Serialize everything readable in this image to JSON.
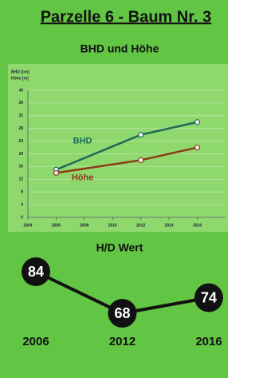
{
  "header": {
    "title": "Parzelle 6 - Baum Nr. 3"
  },
  "chart_data": [
    {
      "type": "line",
      "title": "BHD und Höhe",
      "ylabel": "BHD [cm]",
      "ylabel2": "Höhe [m]",
      "x": [
        2006,
        2012,
        2016
      ],
      "series": [
        {
          "name": "BHD",
          "color": "#1d6a55",
          "values": [
            15,
            26,
            30
          ]
        },
        {
          "name": "Höhe",
          "color": "#8c3b17",
          "values": [
            14,
            18,
            22
          ]
        }
      ],
      "xlim": [
        2004,
        2018
      ],
      "xticks": [
        2004,
        2006,
        2008,
        2010,
        2012,
        2014,
        2016
      ],
      "ylim": [
        0,
        40
      ],
      "yticks": [
        0,
        4,
        8,
        12,
        16,
        20,
        24,
        28,
        32,
        36,
        40
      ],
      "grid": true
    },
    {
      "type": "line",
      "title": "H/D Wert",
      "categories": [
        "2006",
        "2012",
        "2016"
      ],
      "values": [
        84,
        68,
        74
      ],
      "color": "#111111"
    }
  ]
}
